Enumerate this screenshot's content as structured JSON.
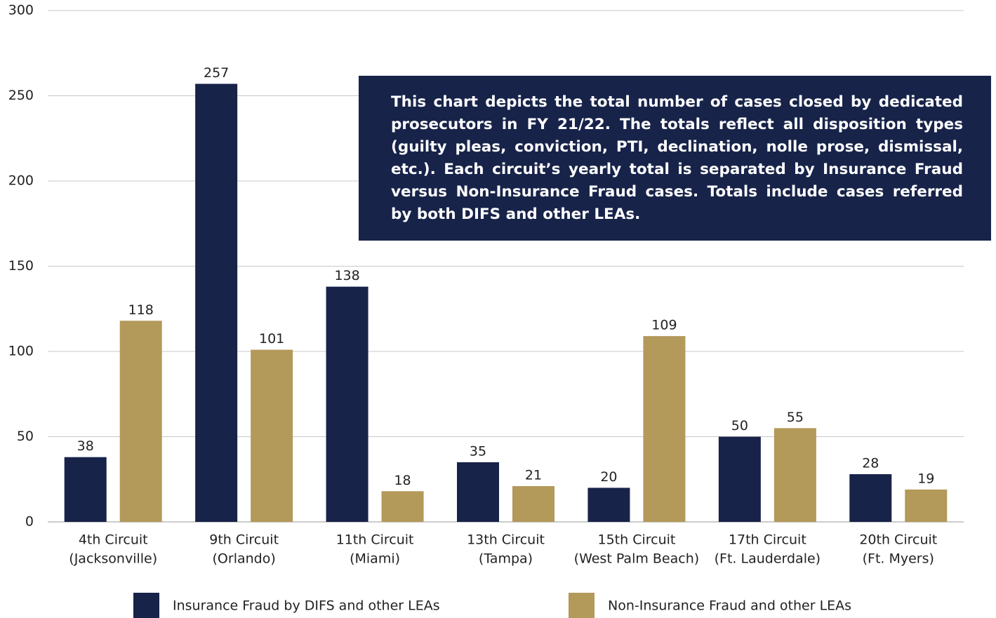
{
  "chart_data": {
    "type": "bar",
    "annotation": "This chart depicts the total number of cases closed by dedicated prosecutors in FY 21/22. The totals reflect all disposition types (guilty pleas, conviction, PTI, declination, nolle prose, dismissal, etc.). Each circuit’s yearly total is separated by Insurance Fraud versus Non-Insurance Fraud cases. Totals include cases referred by both DIFS and other LEAs.",
    "categories": [
      [
        "4th Circuit",
        "(Jacksonville)"
      ],
      [
        "9th Circuit",
        "(Orlando)"
      ],
      [
        "11th Circuit",
        "(Miami)"
      ],
      [
        "13th Circuit",
        "(Tampa)"
      ],
      [
        "15th Circuit",
        "(West Palm Beach)"
      ],
      [
        "17th Circuit",
        "(Ft. Lauderdale)"
      ],
      [
        "20th Circuit",
        "(Ft. Myers)"
      ]
    ],
    "series": [
      {
        "name": "Insurance Fraud by DIFS and other LEAs",
        "color": "#172349",
        "values": [
          38,
          257,
          138,
          35,
          20,
          50,
          28
        ]
      },
      {
        "name": "Non-Insurance Fraud and other LEAs",
        "color": "#b3995a",
        "values": [
          118,
          101,
          18,
          21,
          109,
          55,
          19
        ]
      }
    ],
    "ylim": [
      0,
      300
    ],
    "yticks": [
      0,
      50,
      100,
      150,
      200,
      250,
      300
    ],
    "grid": true
  }
}
